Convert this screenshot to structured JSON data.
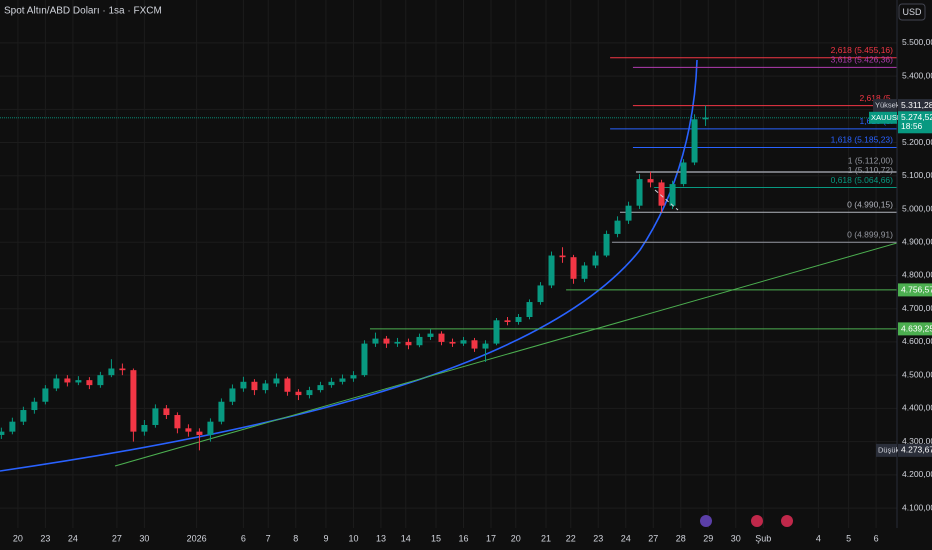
{
  "chart_data": {
    "type": "candlestick",
    "title": "Spot Altın/ABD Doları · 1sa · FXCM",
    "currency": "USD",
    "up_color": "#089981",
    "down_color": "#f23645",
    "grid": true,
    "xlim": [
      -0.65,
      31.96
    ],
    "ylim": [
      4040,
      5629
    ],
    "xticks": [
      {
        "value": 0,
        "label": "20"
      },
      {
        "value": 1,
        "label": "23"
      },
      {
        "value": 2,
        "label": "24"
      },
      {
        "value": 3.6,
        "label": "27"
      },
      {
        "value": 4.6,
        "label": "30"
      },
      {
        "value": 6.5,
        "label": "2026"
      },
      {
        "value": 8.2,
        "label": "6"
      },
      {
        "value": 9.1,
        "label": "7"
      },
      {
        "value": 10.1,
        "label": "8"
      },
      {
        "value": 11.2,
        "label": "9"
      },
      {
        "value": 12.2,
        "label": "10"
      },
      {
        "value": 13.2,
        "label": "13"
      },
      {
        "value": 14.1,
        "label": "14"
      },
      {
        "value": 15.2,
        "label": "15"
      },
      {
        "value": 16.2,
        "label": "16"
      },
      {
        "value": 17.2,
        "label": "17"
      },
      {
        "value": 18.1,
        "label": "20"
      },
      {
        "value": 19.2,
        "label": "21"
      },
      {
        "value": 20.1,
        "label": "22"
      },
      {
        "value": 21.1,
        "label": "23"
      },
      {
        "value": 22.1,
        "label": "24"
      },
      {
        "value": 23.1,
        "label": "27"
      },
      {
        "value": 24.1,
        "label": "28"
      },
      {
        "value": 25.1,
        "label": "29"
      },
      {
        "value": 26.1,
        "label": "30"
      },
      {
        "value": 27.1,
        "label": "Şub"
      },
      {
        "value": 29.1,
        "label": "4"
      },
      {
        "value": 30.2,
        "label": "5"
      },
      {
        "value": 31.2,
        "label": "6"
      }
    ],
    "yticks": [
      {
        "value": 4100,
        "label": "4.100,00"
      },
      {
        "value": 4200,
        "label": "4.200,00"
      },
      {
        "value": 4300,
        "label": "4.300,00"
      },
      {
        "value": 4400,
        "label": "4.400,00"
      },
      {
        "value": 4500,
        "label": "4.500,00"
      },
      {
        "value": 4600,
        "label": "4.600,00"
      },
      {
        "value": 4700,
        "label": "4.700,00"
      },
      {
        "value": 4800,
        "label": "4.800,00"
      },
      {
        "value": 4900,
        "label": "4.900,00"
      },
      {
        "value": 5000,
        "label": "5.000,00"
      },
      {
        "value": 5100,
        "label": "5.100,00"
      },
      {
        "value": 5200,
        "label": "5.200,00"
      },
      {
        "value": 5300,
        "label": "5.300,00"
      },
      {
        "value": 5400,
        "label": "5.400,00"
      },
      {
        "value": 5500,
        "label": "5.500,00"
      }
    ],
    "x": [
      -0.6,
      -0.2,
      0.2,
      0.6,
      1.0,
      1.4,
      1.8,
      2.2,
      2.6,
      3.0,
      3.4,
      3.8,
      4.2,
      4.6,
      5.0,
      5.4,
      5.8,
      6.2,
      6.6,
      7.0,
      7.4,
      7.8,
      8.2,
      8.6,
      9.0,
      9.4,
      9.8,
      10.2,
      10.6,
      11.0,
      11.4,
      11.8,
      12.2,
      12.6,
      13.0,
      13.4,
      13.8,
      14.2,
      14.6,
      15.0,
      15.4,
      15.8,
      16.2,
      16.6,
      17.0,
      17.4,
      17.8,
      18.2,
      18.6,
      19.0,
      19.4,
      19.8,
      20.2,
      20.6,
      21.0,
      21.4,
      21.8,
      22.2,
      22.6,
      23.0,
      23.4,
      23.8,
      24.2,
      24.6,
      25.0
    ],
    "open": [
      4320,
      4330,
      4360,
      4395,
      4420,
      4460,
      4490,
      4478,
      4485,
      4470,
      4500,
      4520,
      4515,
      4330,
      4350,
      4400,
      4380,
      4340,
      4330,
      4320,
      4360,
      4420,
      4460,
      4480,
      4455,
      4475,
      4490,
      4450,
      4440,
      4455,
      4470,
      4480,
      4490,
      4500,
      4595,
      4610,
      4595,
      4600,
      4590,
      4615,
      4625,
      4600,
      4595,
      4605,
      4580,
      4595,
      4665,
      4660,
      4675,
      4720,
      4770,
      4860,
      4855,
      4790,
      4830,
      4860,
      4925,
      4965,
      5010,
      5090,
      5080,
      5010,
      5075,
      5140,
      5270
    ],
    "high": [
      4342,
      4372,
      4405,
      4432,
      4470,
      4502,
      4500,
      4497,
      4494,
      4510,
      4548,
      4535,
      4520,
      4365,
      4412,
      4410,
      4388,
      4352,
      4340,
      4370,
      4430,
      4472,
      4495,
      4488,
      4485,
      4505,
      4495,
      4458,
      4465,
      4480,
      4492,
      4502,
      4512,
      4605,
      4628,
      4618,
      4612,
      4610,
      4625,
      4638,
      4632,
      4610,
      4615,
      4612,
      4605,
      4672,
      4675,
      4684,
      4728,
      4780,
      4872,
      4885,
      4862,
      4840,
      4872,
      4935,
      4978,
      5022,
      5105,
      5112,
      5088,
      5085,
      5150,
      5285,
      5311.28
    ],
    "low": [
      4308,
      4322,
      4350,
      4384,
      4412,
      4452,
      4466,
      4470,
      4458,
      4462,
      4494,
      4500,
      4300,
      4318,
      4342,
      4368,
      4325,
      4315,
      4273.67,
      4300,
      4352,
      4410,
      4450,
      4440,
      4445,
      4465,
      4438,
      4425,
      4430,
      4448,
      4462,
      4472,
      4480,
      4495,
      4585,
      4582,
      4585,
      4578,
      4584,
      4606,
      4590,
      4585,
      4588,
      4570,
      4540,
      4590,
      4650,
      4652,
      4668,
      4712,
      4762,
      4838,
      4775,
      4780,
      4822,
      4855,
      4915,
      4955,
      5000,
      5065,
      4990,
      5000,
      5068,
      5132,
      5250
    ],
    "close": [
      4330,
      4360,
      4395,
      4420,
      4460,
      4490,
      4478,
      4485,
      4470,
      4500,
      4520,
      4515,
      4330,
      4350,
      4400,
      4380,
      4340,
      4330,
      4320,
      4360,
      4420,
      4460,
      4480,
      4455,
      4475,
      4490,
      4450,
      4440,
      4455,
      4470,
      4480,
      4490,
      4500,
      4595,
      4610,
      4595,
      4600,
      4590,
      4615,
      4625,
      4600,
      4595,
      4605,
      4580,
      4595,
      4665,
      4660,
      4675,
      4720,
      4770,
      4860,
      4855,
      4790,
      4830,
      4860,
      4925,
      4965,
      5010,
      5090,
      5080,
      5010,
      5075,
      5140,
      5270,
      5275
    ],
    "levels": [
      {
        "label": "2,618 (5.455,16)",
        "value": 5455.16,
        "x_start": 21.53,
        "color": "#f23645"
      },
      {
        "label": "3,618 (5.426,36)",
        "value": 5426.36,
        "x_start": 22.36,
        "color": "#b03cb0"
      },
      {
        "label": "2,618 (5.",
        "value": 5311.28,
        "x_start": 22.36,
        "color": "#f23645"
      },
      {
        "label": "1,618 (5.",
        "value": 5241,
        "x_start": 21.53,
        "color": "#2962ff"
      },
      {
        "label": "1,618 (5.185,23)",
        "value": 5185.23,
        "x_start": 22.36,
        "color": "#2962ff"
      },
      {
        "label": "1 (5.112,00)",
        "value": 5112,
        "x_start": 22.47,
        "color": "#9598a1"
      },
      {
        "label": "1 (5.110,72)",
        "value": 5110.72,
        "x_start": 22.47,
        "color": "#9598a1"
      },
      {
        "label": "0,618 (5.064,66)",
        "value": 5064.66,
        "x_start": 23.13,
        "color": "#089981"
      },
      {
        "label": "0 (4.990,15)",
        "value": 4990.15,
        "x_start": 21.89,
        "color": "#b2b5be"
      },
      {
        "label": "0 (4.899,91)",
        "value": 4899.91,
        "x_start": 21.6,
        "color": "#9598a1"
      }
    ],
    "price_lines": [
      {
        "label": "4.756,57",
        "value": 4756.57,
        "x_start": 19.93,
        "color": "#4caf50"
      },
      {
        "label": "4.639,25",
        "value": 4639.25,
        "x_start": 12.8,
        "color": "#4caf50"
      }
    ],
    "high_tag": {
      "label": "Yüksek",
      "value": 5311.28,
      "value_label": "5.311,28"
    },
    "last": {
      "symbol": "XAUUSD",
      "value": 5274.52,
      "value_label": "5.274,52",
      "countdown": "18:56",
      "color": "#089981"
    },
    "low_tag": {
      "label": "Düşük",
      "value": 4273.67,
      "value_label": "4.273,67"
    }
  }
}
